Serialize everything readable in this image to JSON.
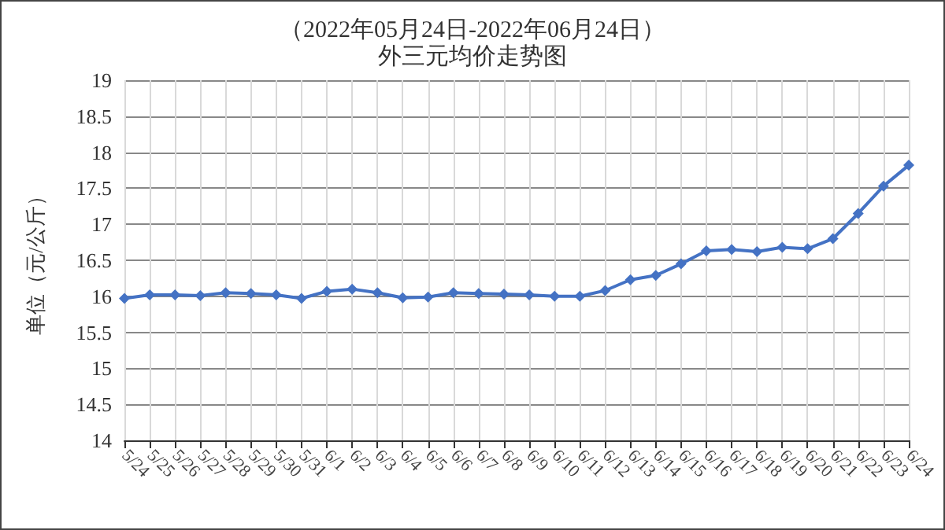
{
  "chart_data": {
    "type": "line",
    "title": "（2022年05月24日-2022年06月24日）",
    "subtitle": "外三元均价走势图",
    "ylabel": "单位（元/公斤）",
    "categories": [
      "5/24",
      "5/25",
      "5/26",
      "5/27",
      "5/28",
      "5/29",
      "5/30",
      "5/31",
      "6/1",
      "6/2",
      "6/3",
      "6/4",
      "6/5",
      "6/6",
      "6/7",
      "6/8",
      "6/9",
      "6/10",
      "6/11",
      "6/12",
      "6/13",
      "6/14",
      "6/15",
      "6/16",
      "6/17",
      "6/18",
      "6/19",
      "6/20",
      "6/21",
      "6/22",
      "6/23",
      "6/24"
    ],
    "series": [
      {
        "color": "#4472c4",
        "values": [
          15.97,
          16.02,
          16.02,
          16.01,
          16.05,
          16.04,
          16.02,
          15.97,
          16.07,
          16.1,
          16.05,
          15.98,
          15.99,
          16.05,
          16.04,
          16.03,
          16.02,
          16.0,
          16.0,
          16.08,
          16.23,
          16.29,
          16.45,
          16.63,
          16.65,
          16.62,
          16.68,
          16.66,
          16.8,
          17.15,
          17.53,
          17.82
        ]
      }
    ],
    "ylim": [
      14,
      19
    ],
    "yticks": [
      14,
      14.5,
      15,
      15.5,
      16,
      16.5,
      17,
      17.5,
      18,
      18.5,
      19
    ],
    "grid": true,
    "marker": "diamond",
    "line_style": "solid"
  }
}
